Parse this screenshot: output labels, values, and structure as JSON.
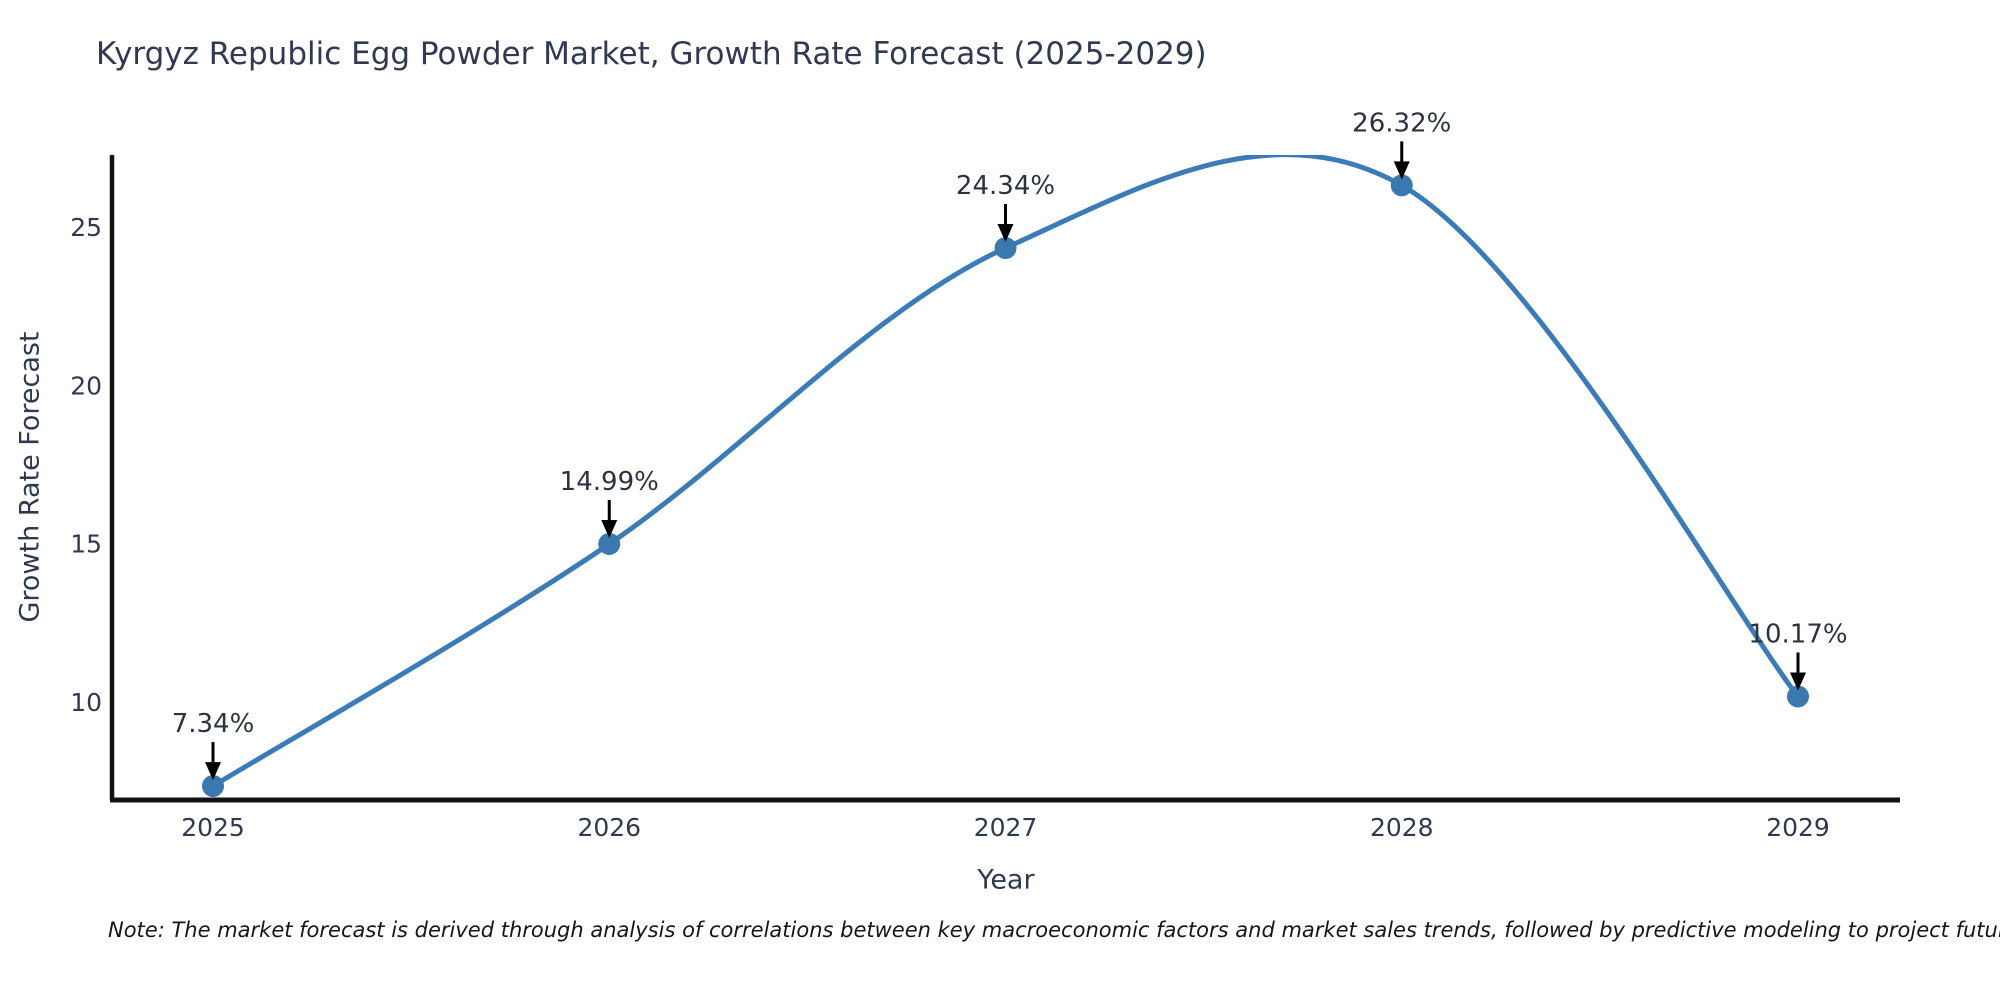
{
  "title": "Kyrgyz Republic Egg Powder Market, Growth Rate Forecast (2025-2029)",
  "note": "Note: The market forecast is derived through analysis of correlations between key macroeconomic factors and market sales trends, followed by predictive modeling to project future sales",
  "chart_data": {
    "type": "line",
    "title": "Kyrgyz Republic Egg Powder Market, Growth Rate Forecast (2025-2029)",
    "x": [
      2025,
      2026,
      2027,
      2028,
      2029
    ],
    "values": [
      7.34,
      14.99,
      24.34,
      26.32,
      10.17
    ],
    "point_labels": [
      "7.34%",
      "14.99%",
      "24.34%",
      "26.32%",
      "10.17%"
    ],
    "xlabel": "Year",
    "ylabel": "Growth Rate Forecast",
    "yticks": [
      10,
      15,
      20,
      25
    ],
    "ylim": [
      6.9,
      27.28
    ],
    "curve": "smooth-spline",
    "grid": false,
    "legend": "none",
    "line_color": "#3b7bb8",
    "marker_color": "#3b78ad",
    "annotation_color": "#000000",
    "text_color": "#2f3a50",
    "axis_color": "#121212"
  }
}
